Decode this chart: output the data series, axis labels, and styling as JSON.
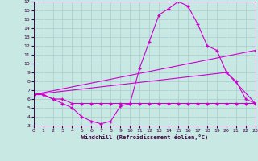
{
  "xlabel": "Windchill (Refroidissement éolien,°C)",
  "xlim": [
    0,
    23
  ],
  "ylim": [
    3,
    17
  ],
  "yticks": [
    3,
    4,
    5,
    6,
    7,
    8,
    9,
    10,
    11,
    12,
    13,
    14,
    15,
    16,
    17
  ],
  "xticks": [
    0,
    1,
    2,
    3,
    4,
    5,
    6,
    7,
    8,
    9,
    10,
    11,
    12,
    13,
    14,
    15,
    16,
    17,
    18,
    19,
    20,
    21,
    22,
    23
  ],
  "bg_color": "#c8e8e4",
  "line_color": "#cc00cc",
  "grid_color": "#aacccc",
  "line1_x": [
    0,
    1,
    2,
    3,
    4,
    5,
    6,
    7,
    8,
    9,
    10,
    11,
    12,
    13,
    14,
    15,
    16,
    17,
    18,
    19,
    20,
    21,
    22,
    23
  ],
  "line1_y": [
    6.5,
    6.5,
    6.0,
    5.5,
    5.0,
    4.0,
    3.5,
    3.2,
    3.5,
    5.2,
    5.5,
    9.5,
    12.5,
    15.5,
    16.2,
    17.0,
    16.5,
    14.5,
    12.0,
    11.5,
    9.0,
    8.0,
    6.0,
    5.5
  ],
  "line2_x": [
    0,
    1,
    2,
    3,
    4,
    5,
    6,
    7,
    8,
    9,
    10,
    11,
    12,
    13,
    14,
    15,
    16,
    17,
    18,
    19,
    20,
    21,
    22,
    23
  ],
  "line2_y": [
    6.5,
    6.5,
    6.0,
    6.0,
    5.5,
    5.5,
    5.5,
    5.5,
    5.5,
    5.5,
    5.5,
    5.5,
    5.5,
    5.5,
    5.5,
    5.5,
    5.5,
    5.5,
    5.5,
    5.5,
    5.5,
    5.5,
    5.5,
    5.5
  ],
  "line3_x": [
    0,
    23
  ],
  "line3_y": [
    6.5,
    11.5
  ],
  "line4_x": [
    0,
    20,
    23
  ],
  "line4_y": [
    6.5,
    9.0,
    5.5
  ]
}
